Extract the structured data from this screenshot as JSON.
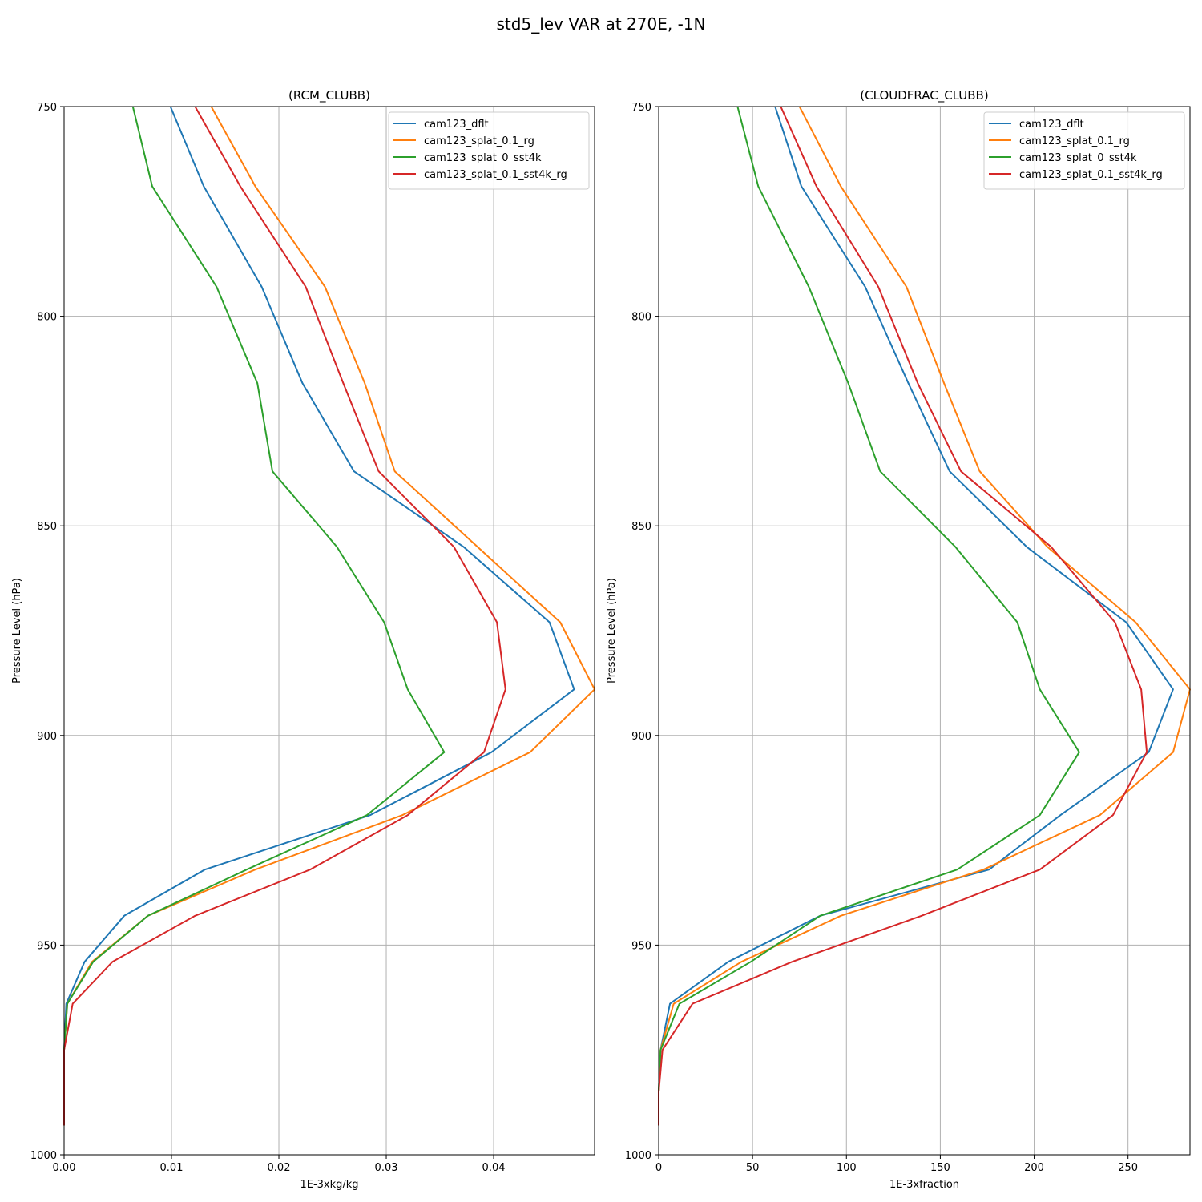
{
  "figure_title": "std5_lev VAR at 270E, -1N",
  "colors": {
    "cam123_dflt": "#1f77b4",
    "cam123_splat_0.1_rg": "#ff7f0e",
    "cam123_splat_0_sst4k": "#2ca02c",
    "cam123_splat_0.1_sst4k_rg": "#d62728",
    "grid": "#b0b0b0"
  },
  "chart_data": [
    {
      "type": "line",
      "title": "(RCM_CLUBB)",
      "xlabel": "1E-3xkg/kg",
      "ylabel": "Pressure Level (hPa)",
      "xlim": [
        0,
        0.0494
      ],
      "ylim": [
        1000,
        750
      ],
      "y_inverted": true,
      "xticks": [
        "0.00",
        "0.01",
        "0.02",
        "0.03",
        "0.04"
      ],
      "yticks": [
        "750",
        "800",
        "850",
        "900",
        "950",
        "1000"
      ],
      "grid": true,
      "legend_position": "upper-right",
      "levels": [
        750,
        769,
        793,
        816,
        837,
        855,
        873,
        889,
        904,
        919,
        932,
        943,
        954,
        964,
        975,
        985,
        993
      ],
      "series": [
        {
          "name": "cam123_dflt",
          "values": [
            0.0099,
            0.013,
            0.0184,
            0.0222,
            0.027,
            0.0372,
            0.0452,
            0.0475,
            0.0398,
            0.0285,
            0.0131,
            0.0056,
            0.0019,
            0.0002,
            0.0,
            0.0,
            0.0
          ]
        },
        {
          "name": "cam123_splat_0.1_rg",
          "values": [
            0.0137,
            0.0178,
            0.0243,
            0.028,
            0.0308,
            0.0385,
            0.0462,
            0.0494,
            0.0434,
            0.0315,
            0.0178,
            0.0078,
            0.0026,
            0.0003,
            0.0,
            0.0,
            0.0
          ]
        },
        {
          "name": "cam123_splat_0_sst4k",
          "values": [
            0.0064,
            0.0082,
            0.0142,
            0.018,
            0.0194,
            0.0254,
            0.0298,
            0.032,
            0.0354,
            0.0282,
            0.017,
            0.0078,
            0.0027,
            0.0003,
            0.0,
            0.0,
            0.0
          ]
        },
        {
          "name": "cam123_splat_0.1_sst4k_rg",
          "values": [
            0.0122,
            0.0164,
            0.0225,
            0.026,
            0.0293,
            0.0363,
            0.0403,
            0.0411,
            0.0391,
            0.032,
            0.0229,
            0.0122,
            0.0045,
            0.0008,
            0.0,
            0.0,
            0.0
          ]
        }
      ]
    },
    {
      "type": "line",
      "title": "(CLOUDFRAC_CLUBB)",
      "xlabel": "1E-3xfraction",
      "ylabel": "Pressure Level (hPa)",
      "xlim": [
        0,
        283
      ],
      "ylim": [
        1000,
        750
      ],
      "y_inverted": true,
      "xticks": [
        "0",
        "50",
        "100",
        "150",
        "200",
        "250"
      ],
      "yticks": [
        "750",
        "800",
        "850",
        "900",
        "950",
        "1000"
      ],
      "grid": true,
      "legend_position": "upper-right",
      "levels": [
        750,
        769,
        793,
        816,
        837,
        855,
        873,
        889,
        904,
        919,
        932,
        943,
        954,
        964,
        975,
        985,
        993
      ],
      "series": [
        {
          "name": "cam123_dflt",
          "values": [
            62,
            76,
            110,
            133,
            155,
            196,
            249,
            274,
            261,
            214,
            176,
            86,
            37,
            6,
            1,
            0,
            0
          ]
        },
        {
          "name": "cam123_splat_0.1_rg",
          "values": [
            75,
            97,
            132,
            152,
            171,
            207,
            254,
            283,
            274,
            235,
            173,
            97,
            44,
            8,
            1,
            0,
            0
          ]
        },
        {
          "name": "cam123_splat_0_sst4k",
          "values": [
            42,
            53,
            80,
            101,
            118,
            158,
            191,
            203,
            224,
            203,
            159,
            86,
            49,
            11,
            1,
            0,
            0
          ]
        },
        {
          "name": "cam123_splat_0.1_sst4k_rg",
          "values": [
            65,
            84,
            117,
            138,
            161,
            209,
            243,
            257,
            260,
            242,
            203,
            140,
            71,
            18,
            2,
            0,
            0
          ]
        }
      ]
    }
  ]
}
